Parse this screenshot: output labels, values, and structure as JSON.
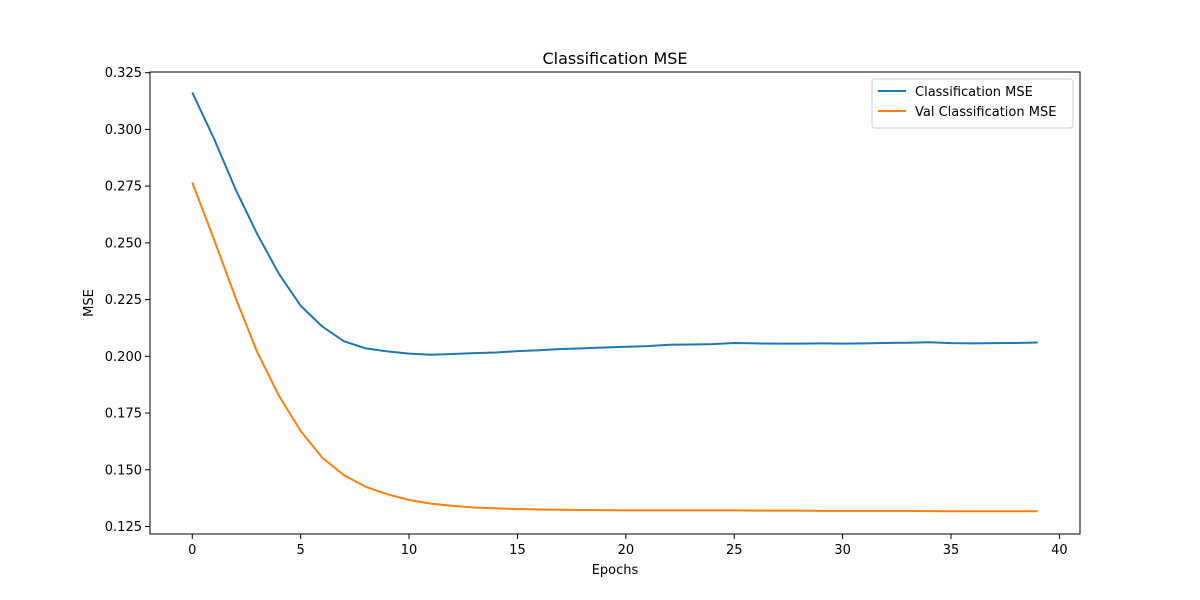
{
  "chart_data": {
    "type": "line",
    "title": "Classification MSE",
    "xlabel": "Epochs",
    "ylabel": "MSE",
    "xlim": [
      -1.95,
      40.95
    ],
    "ylim": [
      0.1217,
      0.3253
    ],
    "xticks": [
      0,
      5,
      10,
      15,
      20,
      25,
      30,
      35,
      40
    ],
    "yticks": [
      0.125,
      0.15,
      0.175,
      0.2,
      0.225,
      0.25,
      0.275,
      0.3,
      0.325
    ],
    "grid": false,
    "legend_position": "top-right",
    "x": [
      0,
      1,
      2,
      3,
      4,
      5,
      6,
      7,
      8,
      9,
      10,
      11,
      12,
      13,
      14,
      15,
      16,
      17,
      18,
      19,
      20,
      21,
      22,
      23,
      24,
      25,
      26,
      27,
      28,
      29,
      30,
      31,
      32,
      33,
      34,
      35,
      36,
      37,
      38,
      39
    ],
    "series": [
      {
        "name": "Classification MSE",
        "color": "#1f77b4",
        "values": [
          0.3163,
          0.296,
          0.2735,
          0.2538,
          0.2363,
          0.2223,
          0.2131,
          0.2066,
          0.2035,
          0.2022,
          0.2012,
          0.2007,
          0.201,
          0.2014,
          0.2017,
          0.2023,
          0.2027,
          0.2032,
          0.2035,
          0.2039,
          0.2042,
          0.2045,
          0.2051,
          0.2052,
          0.2054,
          0.2059,
          0.2057,
          0.2056,
          0.2056,
          0.2057,
          0.2056,
          0.2057,
          0.2059,
          0.206,
          0.2062,
          0.2058,
          0.2057,
          0.2058,
          0.2059,
          0.2061
        ]
      },
      {
        "name": "Val Classification MSE",
        "color": "#ff7f0e",
        "values": [
          0.2766,
          0.2516,
          0.2257,
          0.2018,
          0.1826,
          0.1671,
          0.1553,
          0.1476,
          0.1425,
          0.1392,
          0.1367,
          0.1351,
          0.1341,
          0.1334,
          0.133,
          0.1327,
          0.1325,
          0.1324,
          0.1323,
          0.1322,
          0.1321,
          0.1321,
          0.1321,
          0.1321,
          0.1321,
          0.1321,
          0.132,
          0.132,
          0.132,
          0.1319,
          0.1319,
          0.1319,
          0.1319,
          0.1319,
          0.1318,
          0.1317,
          0.1317,
          0.1317,
          0.1317,
          0.1317
        ]
      }
    ]
  }
}
